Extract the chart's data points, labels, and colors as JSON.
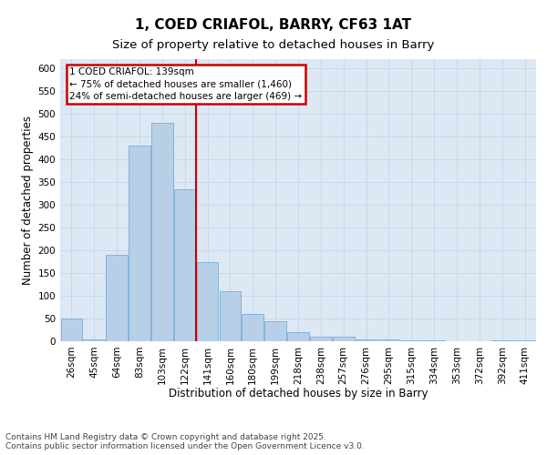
{
  "title_line1": "1, COED CRIAFOL, BARRY, CF63 1AT",
  "title_line2": "Size of property relative to detached houses in Barry",
  "xlabel": "Distribution of detached houses by size in Barry",
  "ylabel": "Number of detached properties",
  "categories": [
    "26sqm",
    "45sqm",
    "64sqm",
    "83sqm",
    "103sqm",
    "122sqm",
    "141sqm",
    "160sqm",
    "180sqm",
    "199sqm",
    "218sqm",
    "238sqm",
    "257sqm",
    "276sqm",
    "295sqm",
    "315sqm",
    "334sqm",
    "353sqm",
    "372sqm",
    "392sqm",
    "411sqm"
  ],
  "values": [
    50,
    5,
    190,
    430,
    480,
    335,
    175,
    110,
    60,
    45,
    20,
    10,
    10,
    5,
    5,
    3,
    2,
    1,
    1,
    3,
    3
  ],
  "bar_color": "#b8cfe8",
  "bar_edge_color": "#7aadd4",
  "grid_color": "#c8d8e8",
  "bg_color": "#dce8f4",
  "vline_x_index": 6,
  "vline_color": "#cc0000",
  "annotation_title": "1 COED CRIAFOL: 139sqm",
  "annotation_line2": "← 75% of detached houses are smaller (1,460)",
  "annotation_line3": "24% of semi-detached houses are larger (469) →",
  "annotation_box_color": "#cc0000",
  "ylim": [
    0,
    620
  ],
  "yticks": [
    0,
    50,
    100,
    150,
    200,
    250,
    300,
    350,
    400,
    450,
    500,
    550,
    600
  ],
  "footnote": "Contains HM Land Registry data © Crown copyright and database right 2025.\nContains public sector information licensed under the Open Government Licence v3.0.",
  "title_fontsize": 11,
  "subtitle_fontsize": 9.5,
  "axis_fontsize": 8.5,
  "tick_fontsize": 7.5,
  "annot_fontsize": 7.5,
  "footnote_fontsize": 6.5
}
